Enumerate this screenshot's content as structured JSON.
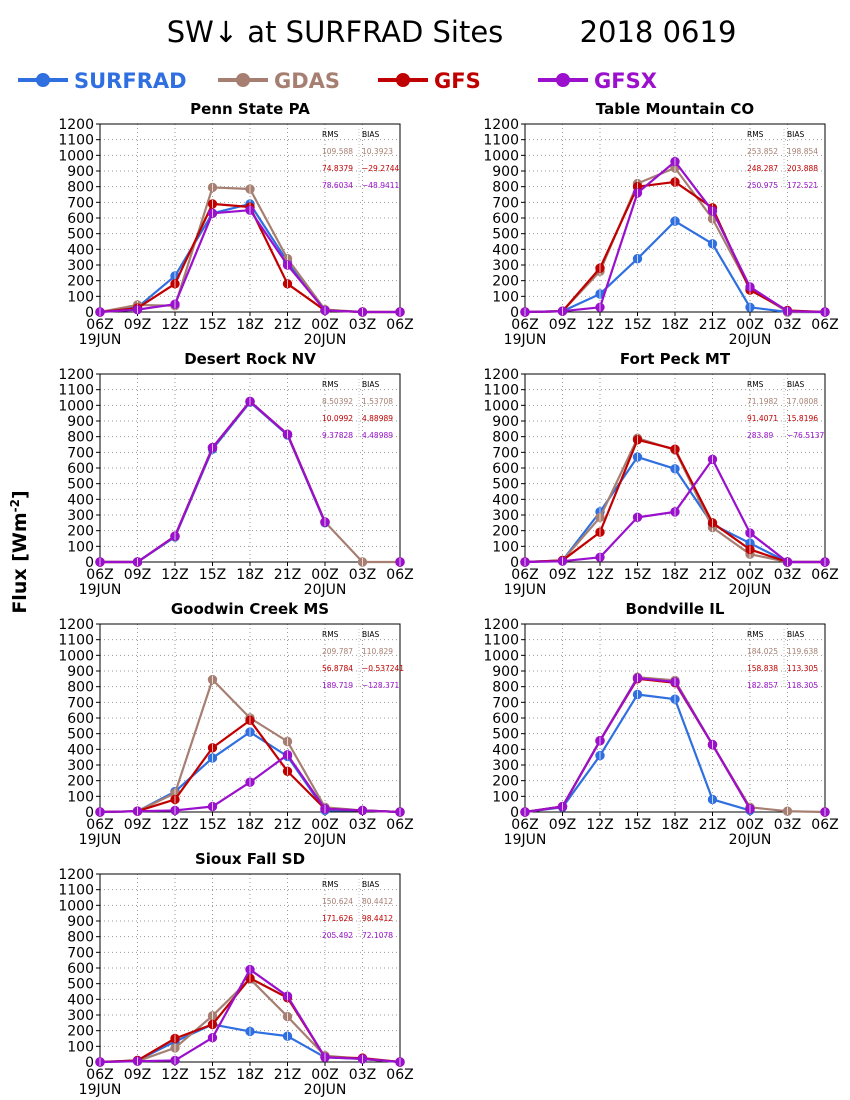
{
  "figure": {
    "title": "SW↓ at SURFRAD Sites",
    "date": "2018 0619",
    "ylabel": "Flux [Wm",
    "ylabel_sup": "-2",
    "ylabel_close": "]"
  },
  "legend": [
    {
      "name": "SURFRAD",
      "color": "#2f6fe0"
    },
    {
      "name": "GDAS",
      "color": "#a67f72"
    },
    {
      "name": "GFS",
      "color": "#c00000"
    },
    {
      "name": "GFSX",
      "color": "#9a10cc"
    }
  ],
  "chart_data": [
    {
      "type": "line",
      "title": "Penn State PA",
      "x": [
        "06Z",
        "09Z",
        "12Z",
        "15Z",
        "18Z",
        "21Z",
        "00Z",
        "03Z",
        "06Z"
      ],
      "date_labels": [
        "19JUN",
        "20JUN"
      ],
      "ylim": [
        0,
        1200
      ],
      "yticks": [
        0,
        100,
        200,
        300,
        400,
        500,
        600,
        700,
        800,
        900,
        1000,
        1100,
        1200
      ],
      "grid": true,
      "series": [
        {
          "name": "SURFRAD",
          "values": [
            0,
            30,
            230,
            630,
            690,
            320,
            10,
            null,
            0
          ]
        },
        {
          "name": "GDAS",
          "values": [
            0,
            45,
            40,
            795,
            785,
            340,
            15,
            0,
            0
          ]
        },
        {
          "name": "GFS",
          "values": [
            0,
            25,
            180,
            690,
            670,
            180,
            10,
            0,
            0
          ]
        },
        {
          "name": "GFSX",
          "values": [
            0,
            15,
            50,
            630,
            650,
            300,
            10,
            0,
            0
          ]
        }
      ],
      "stats": {
        "header": [
          "RMS",
          "BIAS"
        ],
        "rows": [
          [
            "109.588",
            "10.3923"
          ],
          [
            "74.8379",
            "−29.2744"
          ],
          [
            "78.6034",
            "−48.9411"
          ]
        ]
      }
    },
    {
      "type": "line",
      "title": "Table Mountain CO",
      "x": [
        "06Z",
        "09Z",
        "12Z",
        "15Z",
        "18Z",
        "21Z",
        "00Z",
        "03Z",
        "06Z"
      ],
      "date_labels": [
        "19JUN",
        "20JUN"
      ],
      "ylim": [
        0,
        1200
      ],
      "yticks": [
        0,
        100,
        200,
        300,
        400,
        500,
        600,
        700,
        800,
        900,
        1000,
        1100,
        1200
      ],
      "grid": true,
      "series": [
        {
          "name": "SURFRAD",
          "values": [
            0,
            5,
            115,
            340,
            580,
            435,
            30,
            0,
            0
          ]
        },
        {
          "name": "GDAS",
          "values": [
            0,
            5,
            260,
            820,
            920,
            595,
            150,
            0,
            0
          ]
        },
        {
          "name": "GFS",
          "values": [
            0,
            5,
            280,
            800,
            830,
            665,
            140,
            10,
            0
          ]
        },
        {
          "name": "GFSX",
          "values": [
            0,
            5,
            30,
            760,
            960,
            645,
            160,
            5,
            0
          ]
        }
      ],
      "stats": {
        "header": [
          "RMS",
          "BIAS"
        ],
        "rows": [
          [
            "253.852",
            "198.854"
          ],
          [
            "248.287",
            "203.888"
          ],
          [
            "250.975",
            "172.521"
          ]
        ]
      }
    },
    {
      "type": "line",
      "title": "Desert Rock NV",
      "x": [
        "06Z",
        "09Z",
        "12Z",
        "15Z",
        "18Z",
        "21Z",
        "00Z",
        "03Z",
        "06Z"
      ],
      "date_labels": [
        "19JUN",
        "20JUN"
      ],
      "ylim": [
        0,
        1200
      ],
      "yticks": [
        0,
        100,
        200,
        300,
        400,
        500,
        600,
        700,
        800,
        900,
        1000,
        1100,
        1200
      ],
      "grid": true,
      "series": [
        {
          "name": "SURFRAD",
          "values": [
            0,
            0,
            160,
            720,
            1020,
            810,
            250,
            null,
            0
          ]
        },
        {
          "name": "GDAS",
          "values": [
            0,
            0,
            165,
            730,
            1025,
            815,
            255,
            0,
            0
          ]
        },
        {
          "name": "GFS",
          "values": [
            0,
            0,
            165,
            730,
            1025,
            815,
            255,
            null,
            0
          ]
        },
        {
          "name": "GFSX",
          "values": [
            0,
            0,
            165,
            730,
            1025,
            815,
            255,
            null,
            0
          ]
        }
      ],
      "stats": {
        "header": [
          "RMS",
          "BIAS"
        ],
        "rows": [
          [
            "8.50392",
            "1.53708"
          ],
          [
            "10.0992",
            "4.88989"
          ],
          [
            "9.37828",
            "4.48989"
          ]
        ]
      }
    },
    {
      "type": "line",
      "title": "Fort Peck MT",
      "x": [
        "06Z",
        "09Z",
        "12Z",
        "15Z",
        "18Z",
        "21Z",
        "00Z",
        "03Z",
        "06Z"
      ],
      "date_labels": [
        "19JUN",
        "20JUN"
      ],
      "ylim": [
        0,
        1200
      ],
      "yticks": [
        0,
        100,
        200,
        300,
        400,
        500,
        600,
        700,
        800,
        900,
        1000,
        1100,
        1200
      ],
      "grid": true,
      "series": [
        {
          "name": "SURFRAD",
          "values": [
            0,
            10,
            320,
            670,
            595,
            240,
            120,
            0,
            0
          ]
        },
        {
          "name": "GDAS",
          "values": [
            0,
            10,
            285,
            790,
            715,
            220,
            50,
            0,
            0
          ]
        },
        {
          "name": "GFS",
          "values": [
            0,
            10,
            190,
            780,
            720,
            250,
            80,
            0,
            0
          ]
        },
        {
          "name": "GFSX",
          "values": [
            0,
            5,
            30,
            285,
            320,
            655,
            185,
            0,
            0
          ]
        }
      ],
      "stats": {
        "header": [
          "RMS",
          "BIAS"
        ],
        "rows": [
          [
            "71.1982",
            "17.0808"
          ],
          [
            "91.4071",
            "15.8196"
          ],
          [
            "283.89",
            "−76.5137"
          ]
        ]
      }
    },
    {
      "type": "line",
      "title": "Goodwin Creek MS",
      "x": [
        "06Z",
        "09Z",
        "12Z",
        "15Z",
        "18Z",
        "21Z",
        "00Z",
        "03Z",
        "06Z"
      ],
      "date_labels": [
        "19JUN",
        "20JUN"
      ],
      "ylim": [
        0,
        1200
      ],
      "yticks": [
        0,
        100,
        200,
        300,
        400,
        500,
        600,
        700,
        800,
        900,
        1000,
        1100,
        1200
      ],
      "grid": true,
      "series": [
        {
          "name": "SURFRAD",
          "values": [
            0,
            5,
            130,
            345,
            510,
            355,
            10,
            10,
            0
          ]
        },
        {
          "name": "GDAS",
          "values": [
            0,
            5,
            120,
            845,
            600,
            450,
            30,
            10,
            0
          ]
        },
        {
          "name": "GFS",
          "values": [
            0,
            5,
            80,
            410,
            585,
            260,
            20,
            10,
            0
          ]
        },
        {
          "name": "GFSX",
          "values": [
            0,
            5,
            10,
            35,
            190,
            365,
            20,
            10,
            0
          ]
        }
      ],
      "stats": {
        "header": [
          "RMS",
          "BIAS"
        ],
        "rows": [
          [
            "209.787",
            "110.829"
          ],
          [
            "56.8784",
            "−0.537241"
          ],
          [
            "189.719",
            "−128.371"
          ]
        ]
      }
    },
    {
      "type": "line",
      "title": "Bondville IL",
      "x": [
        "06Z",
        "09Z",
        "12Z",
        "15Z",
        "18Z",
        "21Z",
        "00Z",
        "03Z",
        "06Z"
      ],
      "date_labels": [
        "19JUN",
        "20JUN"
      ],
      "ylim": [
        0,
        1200
      ],
      "yticks": [
        0,
        100,
        200,
        300,
        400,
        500,
        600,
        700,
        800,
        900,
        1000,
        1100,
        1200
      ],
      "grid": true,
      "series": [
        {
          "name": "SURFRAD",
          "values": [
            0,
            30,
            360,
            750,
            720,
            80,
            10,
            null,
            0
          ]
        },
        {
          "name": "GDAS",
          "values": [
            0,
            35,
            455,
            860,
            840,
            430,
            30,
            5,
            0
          ]
        },
        {
          "name": "GFS",
          "values": [
            0,
            35,
            455,
            850,
            825,
            430,
            20,
            null,
            0
          ]
        },
        {
          "name": "GFSX",
          "values": [
            0,
            35,
            455,
            855,
            830,
            430,
            20,
            null,
            0
          ]
        }
      ],
      "stats": {
        "header": [
          "RMS",
          "BIAS"
        ],
        "rows": [
          [
            "184.025",
            "119.638"
          ],
          [
            "158.838",
            "113.305"
          ],
          [
            "182.857",
            "118.305"
          ]
        ]
      }
    },
    {
      "type": "line",
      "title": "Sioux Fall SD",
      "x": [
        "06Z",
        "09Z",
        "12Z",
        "15Z",
        "18Z",
        "21Z",
        "00Z",
        "03Z",
        "06Z"
      ],
      "date_labels": [
        "19JUN",
        "20JUN"
      ],
      "ylim": [
        0,
        1200
      ],
      "yticks": [
        0,
        100,
        200,
        300,
        400,
        500,
        600,
        700,
        800,
        900,
        1000,
        1100,
        1200
      ],
      "grid": true,
      "series": [
        {
          "name": "SURFRAD",
          "values": [
            0,
            10,
            130,
            240,
            195,
            165,
            30,
            20,
            0
          ]
        },
        {
          "name": "GDAS",
          "values": [
            0,
            5,
            90,
            295,
            530,
            290,
            40,
            20,
            0
          ]
        },
        {
          "name": "GFS",
          "values": [
            0,
            10,
            150,
            240,
            535,
            410,
            30,
            25,
            0
          ]
        },
        {
          "name": "GFSX",
          "values": [
            0,
            5,
            10,
            155,
            590,
            420,
            30,
            20,
            0
          ]
        }
      ],
      "stats": {
        "header": [
          "RMS",
          "BIAS"
        ],
        "rows": [
          [
            "150.624",
            "80.4412"
          ],
          [
            "171.626",
            "98.4412"
          ],
          [
            "205.492",
            "72.1078"
          ]
        ]
      }
    }
  ]
}
